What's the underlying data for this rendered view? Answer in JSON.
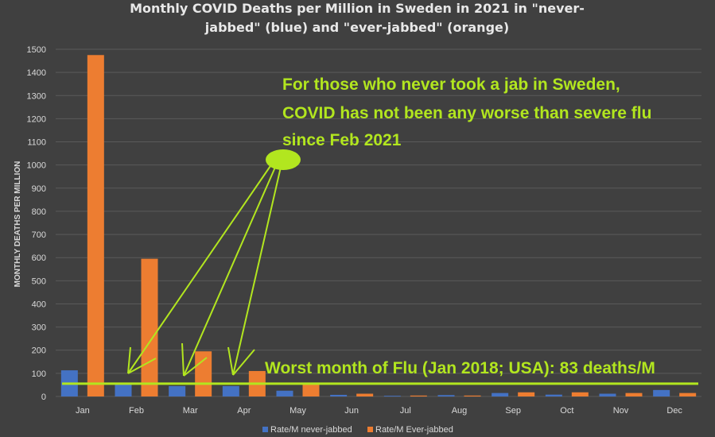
{
  "chart_data": {
    "type": "bar",
    "title": "Monthly COVID Deaths per Million in Sweden in 2021 in \"never-",
    "title_line2": "jabbed\" (blue) and \"ever-jabbed\" (orange)",
    "ylabel": "MONTHLY DEATHS PER MILLION",
    "xlabel": "",
    "ylim": [
      0,
      1500
    ],
    "yticks": [
      "0",
      "100",
      "200",
      "300",
      "400",
      "500",
      "600",
      "700",
      "800",
      "900",
      "1000",
      "1100",
      "1200",
      "1300",
      "1400",
      "1500"
    ],
    "grid": true,
    "legend_position": "bottom",
    "categories": [
      "Jan",
      "Feb",
      "Mar",
      "Apr",
      "May",
      "Jun",
      "Jul",
      "Aug",
      "Sep",
      "Oct",
      "Nov",
      "Dec"
    ],
    "series": [
      {
        "name": "Rate/M never-jabbed",
        "color": "#4472c4",
        "values": [
          113,
          57,
          45,
          45,
          25,
          7,
          3,
          6,
          15,
          8,
          12,
          28
        ]
      },
      {
        "name": "Rate/M Ever-jabbed",
        "color": "#ed7d31",
        "values": [
          1475,
          595,
          195,
          110,
          55,
          12,
          4,
          4,
          18,
          18,
          15,
          15
        ]
      }
    ],
    "reference_line": {
      "value": 83,
      "label": "Worst month of Flu (Jan 2018; USA): 83 deaths/M",
      "color": "#b2e61f"
    },
    "annotation": {
      "lines": [
        "For those who never took a jab in Sweden,",
        "COVID has not been any worse than severe flu",
        "since Feb 2021"
      ],
      "color": "#b2e61f"
    }
  }
}
